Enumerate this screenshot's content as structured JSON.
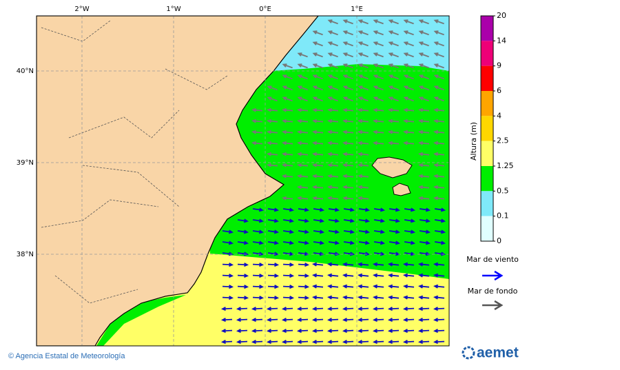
{
  "axes": {
    "longitude": [
      "2°W",
      "1°W",
      "0°E",
      "1°E"
    ],
    "latitude": [
      "40°N",
      "39°N",
      "38°N"
    ]
  },
  "colorbar": {
    "title": "Altura (m)",
    "levels": [
      20,
      14,
      9,
      6,
      4,
      2.5,
      1.25,
      0.5,
      0.1,
      0
    ]
  },
  "legend": {
    "wind_sea": "Mar de viento",
    "swell": "Mar de fondo"
  },
  "footer": {
    "credit": "© Agencia Estatal de Meteorología",
    "logo": "aemet"
  }
}
